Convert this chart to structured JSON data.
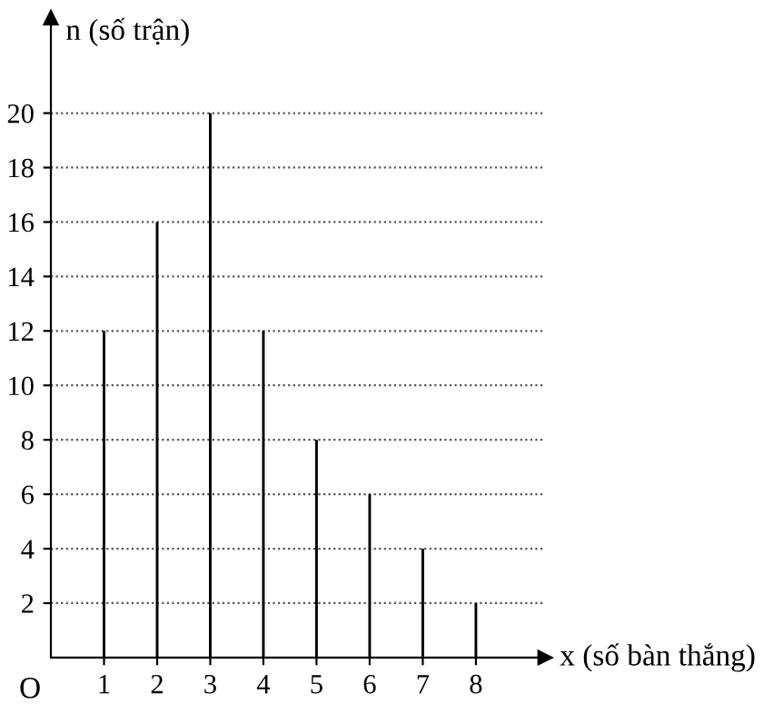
{
  "chart_data": {
    "type": "bar",
    "xlabel": "x (số bàn thắng)",
    "ylabel": "n (số trận)",
    "x": [
      1,
      2,
      3,
      4,
      5,
      6,
      7,
      8
    ],
    "series": [
      {
        "color": "#000000",
        "values": [
          12,
          16,
          20,
          12,
          8,
          6,
          4,
          2
        ]
      }
    ],
    "xlim": [
      0,
      9.3
    ],
    "ylim": [
      0,
      23.5
    ],
    "xticks": [
      1,
      2,
      3,
      4,
      5,
      6,
      7,
      8
    ],
    "yticks": [
      2,
      4,
      6,
      8,
      10,
      12,
      14,
      16,
      18,
      20
    ],
    "grid": "y",
    "legend": false,
    "annotations": [
      "O"
    ]
  }
}
